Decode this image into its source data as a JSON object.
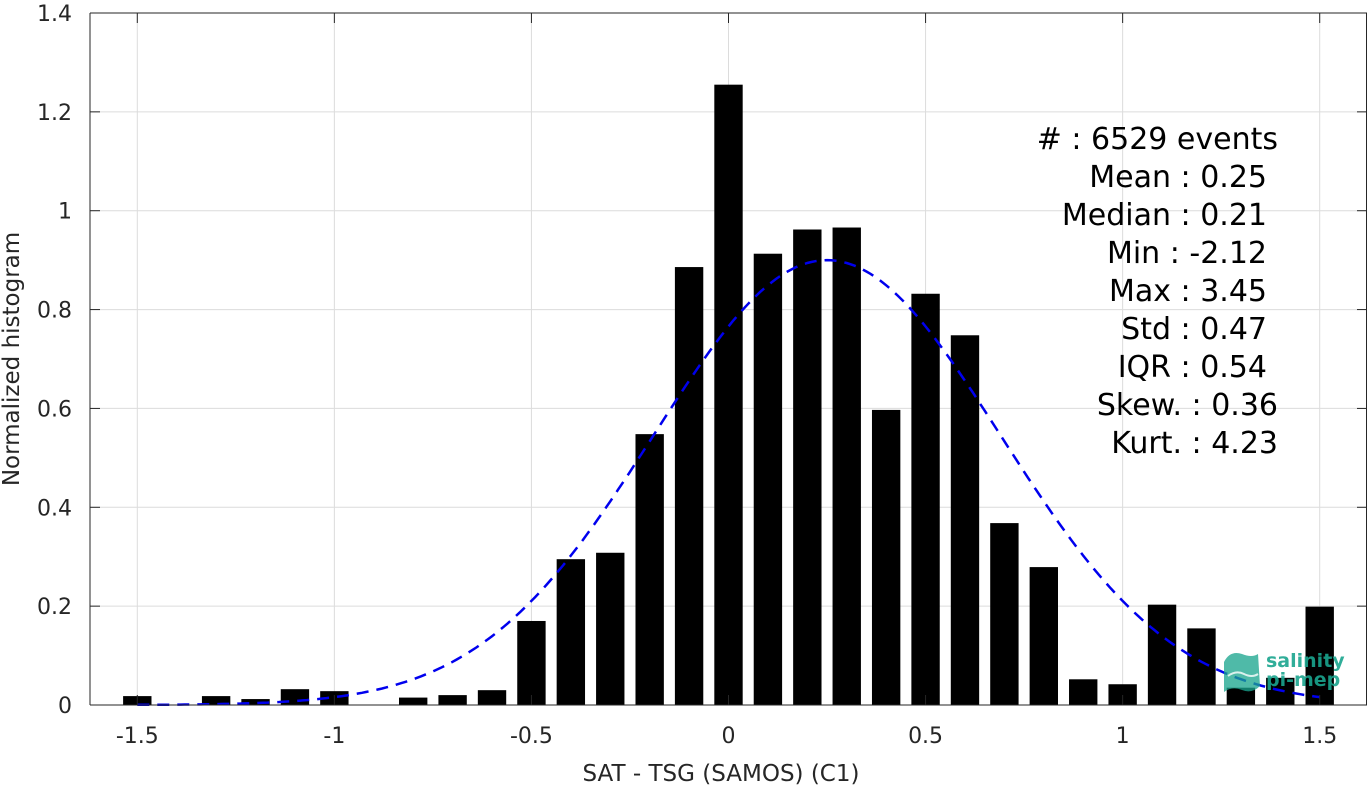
{
  "chart_data": {
    "type": "bar",
    "xlabel": "SAT - TSG (SAMOS) (C1)",
    "ylabel": "Normalized histogram",
    "xlim": [
      -1.62,
      1.62
    ],
    "ylim": [
      0,
      1.4
    ],
    "grid": true,
    "x_ticks": [
      -1.5,
      -1,
      -0.5,
      0,
      0.5,
      1,
      1.5
    ],
    "x_tick_labels": [
      "-1.5",
      "-1",
      "-0.5",
      "0",
      "0.5",
      "1",
      "1.5"
    ],
    "y_ticks": [
      0,
      0.2,
      0.4,
      0.6,
      0.8,
      1,
      1.2,
      1.4
    ],
    "y_tick_labels": [
      "0",
      "0.2",
      "0.4",
      "0.6",
      "0.8",
      "1",
      "1.2",
      "1.4"
    ],
    "bar_color": "#000000",
    "bin_centers": [
      -1.5,
      -1.3,
      -1.2,
      -1.1,
      -1.0,
      -0.8,
      -0.7,
      -0.6,
      -0.5,
      -0.4,
      -0.3,
      -0.2,
      -0.1,
      0.0,
      0.1,
      0.2,
      0.3,
      0.4,
      0.5,
      0.6,
      0.7,
      0.8,
      0.9,
      1.0,
      1.1,
      1.2,
      1.3,
      1.4,
      1.5
    ],
    "values": [
      0.018,
      0.018,
      0.012,
      0.032,
      0.028,
      0.015,
      0.02,
      0.03,
      0.17,
      0.295,
      0.308,
      0.548,
      0.886,
      1.255,
      0.913,
      0.962,
      0.966,
      0.597,
      0.832,
      0.748,
      0.368,
      0.279,
      0.052,
      0.042,
      0.203,
      0.155,
      0.035,
      0.055,
      0.199
    ],
    "fit": {
      "name": "normal fit",
      "style": "dashed",
      "color": "#0000ee",
      "mean": 0.25,
      "std": 0.44,
      "peak": 0.9,
      "x_range": [
        -1.5,
        1.5
      ]
    },
    "stats": {
      "count": "#  : 6529 events",
      "mean": "Mean : 0.25",
      "median": "Median : 0.21",
      "min": "Min : -2.12",
      "max": "Max : 3.45",
      "std": "Std : 0.47",
      "iqr": "IQR : 0.54",
      "skew": "Skew. : 0.36",
      "kurt": "Kurt. : 4.23"
    }
  },
  "logo": {
    "line1": "salinity",
    "line2": "pi-mep",
    "color": "#1aa58e"
  }
}
